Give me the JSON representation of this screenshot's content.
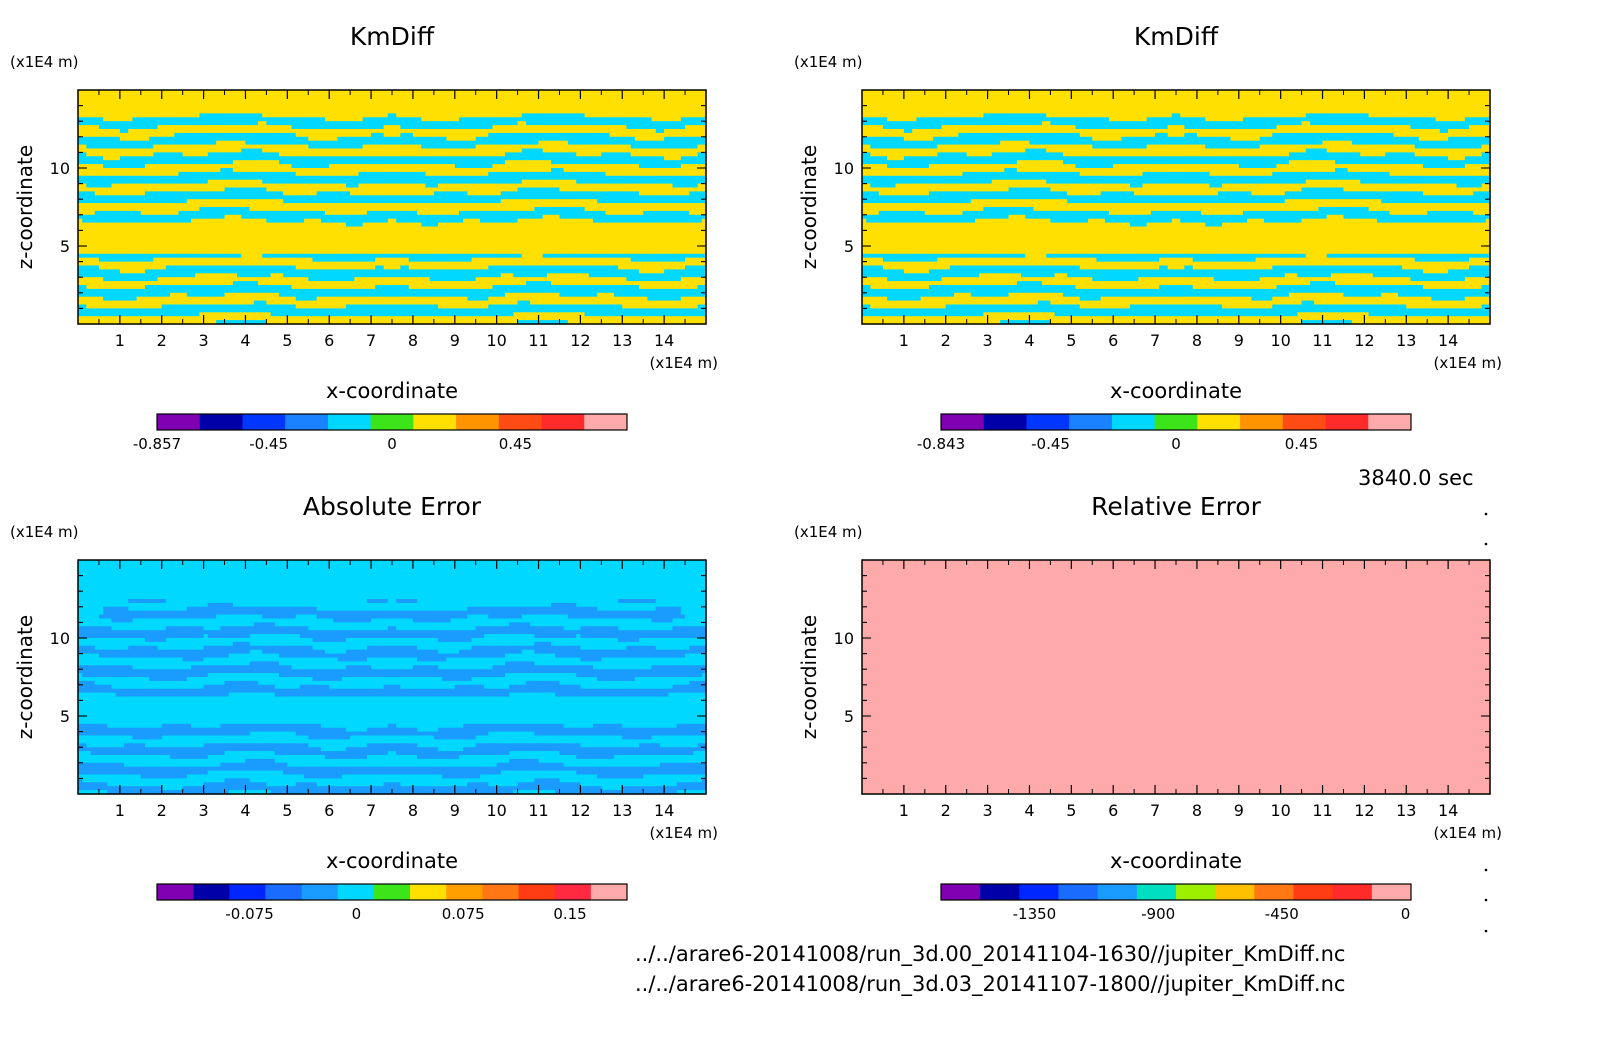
{
  "time_label": "3840.0 sec",
  "file_paths": [
    "../../arare6-20141008/run_3d.00_20141104-1630//jupiter_KmDiff.nc",
    "../../arare6-20141008/run_3d.03_20141107-1800//jupiter_KmDiff.nc"
  ],
  "chart_data": [
    {
      "type": "heatmap",
      "title": "KmDiff",
      "xlabel": "x-coordinate",
      "ylabel": "z-coordinate",
      "x_unit": "(x1E4 m)",
      "y_unit": "(x1E4 m)",
      "xlim": [
        0,
        15
      ],
      "ylim": [
        0,
        15
      ],
      "x_ticks": [
        1,
        2,
        3,
        4,
        5,
        6,
        7,
        8,
        9,
        10,
        11,
        12,
        13,
        14
      ],
      "y_ticks": [
        5,
        10
      ],
      "field": "kmdiff",
      "colorbar": {
        "colors": [
          "#7f00b2",
          "#0000a8",
          "#0036ff",
          "#1a82ff",
          "#00d8ff",
          "#3ce41a",
          "#ffe000",
          "#ff9400",
          "#ff4c14",
          "#ff2a2a",
          "#ffaaaa"
        ],
        "labels": [
          {
            "text": "-0.857",
            "value": -0.857
          },
          {
            "text": "-0.45",
            "value": -0.45
          },
          {
            "text": "0",
            "value": 0
          },
          {
            "text": "0.45",
            "value": 0.45
          }
        ],
        "min": -0.857,
        "max": 0.857
      }
    },
    {
      "type": "heatmap",
      "title": "KmDiff",
      "xlabel": "x-coordinate",
      "ylabel": "z-coordinate",
      "x_unit": "(x1E4 m)",
      "y_unit": "(x1E4 m)",
      "xlim": [
        0,
        15
      ],
      "ylim": [
        0,
        15
      ],
      "x_ticks": [
        1,
        2,
        3,
        4,
        5,
        6,
        7,
        8,
        9,
        10,
        11,
        12,
        13,
        14
      ],
      "y_ticks": [
        5,
        10
      ],
      "field": "kmdiff",
      "colorbar": {
        "colors": [
          "#7f00b2",
          "#0000a8",
          "#0036ff",
          "#1a82ff",
          "#00d8ff",
          "#3ce41a",
          "#ffe000",
          "#ff9400",
          "#ff4c14",
          "#ff2a2a",
          "#ffaaaa"
        ],
        "labels": [
          {
            "text": "-0.843",
            "value": -0.843
          },
          {
            "text": "-0.45",
            "value": -0.45
          },
          {
            "text": "0",
            "value": 0
          },
          {
            "text": "0.45",
            "value": 0.45
          }
        ],
        "min": -0.843,
        "max": 0.843
      }
    },
    {
      "type": "heatmap",
      "title": "Absolute Error",
      "xlabel": "x-coordinate",
      "ylabel": "z-coordinate",
      "x_unit": "(x1E4 m)",
      "y_unit": "(x1E4 m)",
      "xlim": [
        0,
        15
      ],
      "ylim": [
        0,
        15
      ],
      "x_ticks": [
        1,
        2,
        3,
        4,
        5,
        6,
        7,
        8,
        9,
        10,
        11,
        12,
        13,
        14
      ],
      "y_ticks": [
        5,
        10
      ],
      "field": "abserr",
      "colorbar": {
        "colors": [
          "#7f00b2",
          "#0000a8",
          "#0026ff",
          "#1a6cff",
          "#1a9cff",
          "#00d8ff",
          "#3ce41a",
          "#ffe000",
          "#ffa000",
          "#ff7814",
          "#ff3c14",
          "#ff2a40",
          "#ffaaaa"
        ],
        "labels": [
          {
            "text": "-0.075",
            "value": -0.075
          },
          {
            "text": "0",
            "value": 0
          },
          {
            "text": "0.075",
            "value": 0.075
          },
          {
            "text": "0.15",
            "value": 0.15
          }
        ],
        "min": -0.14,
        "max": 0.19
      }
    },
    {
      "type": "heatmap",
      "title": "Relative Error",
      "xlabel": "x-coordinate",
      "ylabel": "z-coordinate",
      "x_unit": "(x1E4 m)",
      "y_unit": "(x1E4 m)",
      "xlim": [
        0,
        15
      ],
      "ylim": [
        0,
        15
      ],
      "x_ticks": [
        1,
        2,
        3,
        4,
        5,
        6,
        7,
        8,
        9,
        10,
        11,
        12,
        13,
        14
      ],
      "y_ticks": [
        5,
        10
      ],
      "field": "relerr",
      "colorbar": {
        "colors": [
          "#7f00b2",
          "#0000a8",
          "#0026ff",
          "#1a6cff",
          "#1a9cff",
          "#00e0c0",
          "#9cf000",
          "#ffc000",
          "#ff7814",
          "#ff3c14",
          "#ff2a2a",
          "#ffaaaa"
        ],
        "labels": [
          {
            "text": "-1350",
            "value": -1350
          },
          {
            "text": "-900",
            "value": -900
          },
          {
            "text": "-450",
            "value": -450
          },
          {
            "text": "0",
            "value": 0
          }
        ],
        "min": -1690,
        "max": 20
      }
    }
  ]
}
